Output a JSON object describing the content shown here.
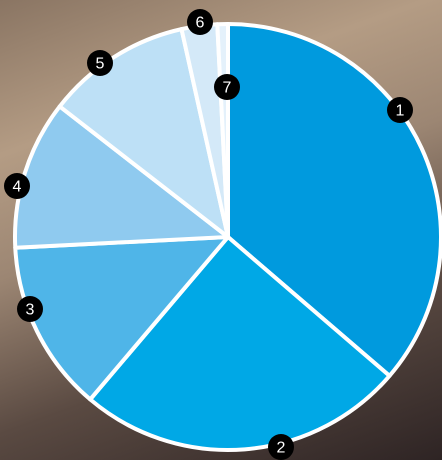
{
  "chart_data": {
    "type": "pie",
    "labels": [
      "1",
      "2",
      "3",
      "4",
      "5",
      "6",
      "7"
    ],
    "values": [
      36.3,
      24.9,
      13.0,
      11.3,
      11.0,
      2.7,
      0.8
    ],
    "colors": [
      "#009ade",
      "#00a8e6",
      "#4fb5e8",
      "#8fcaef",
      "#bde0f6",
      "#d4e9f8",
      "#e4f1fb"
    ]
  }
}
